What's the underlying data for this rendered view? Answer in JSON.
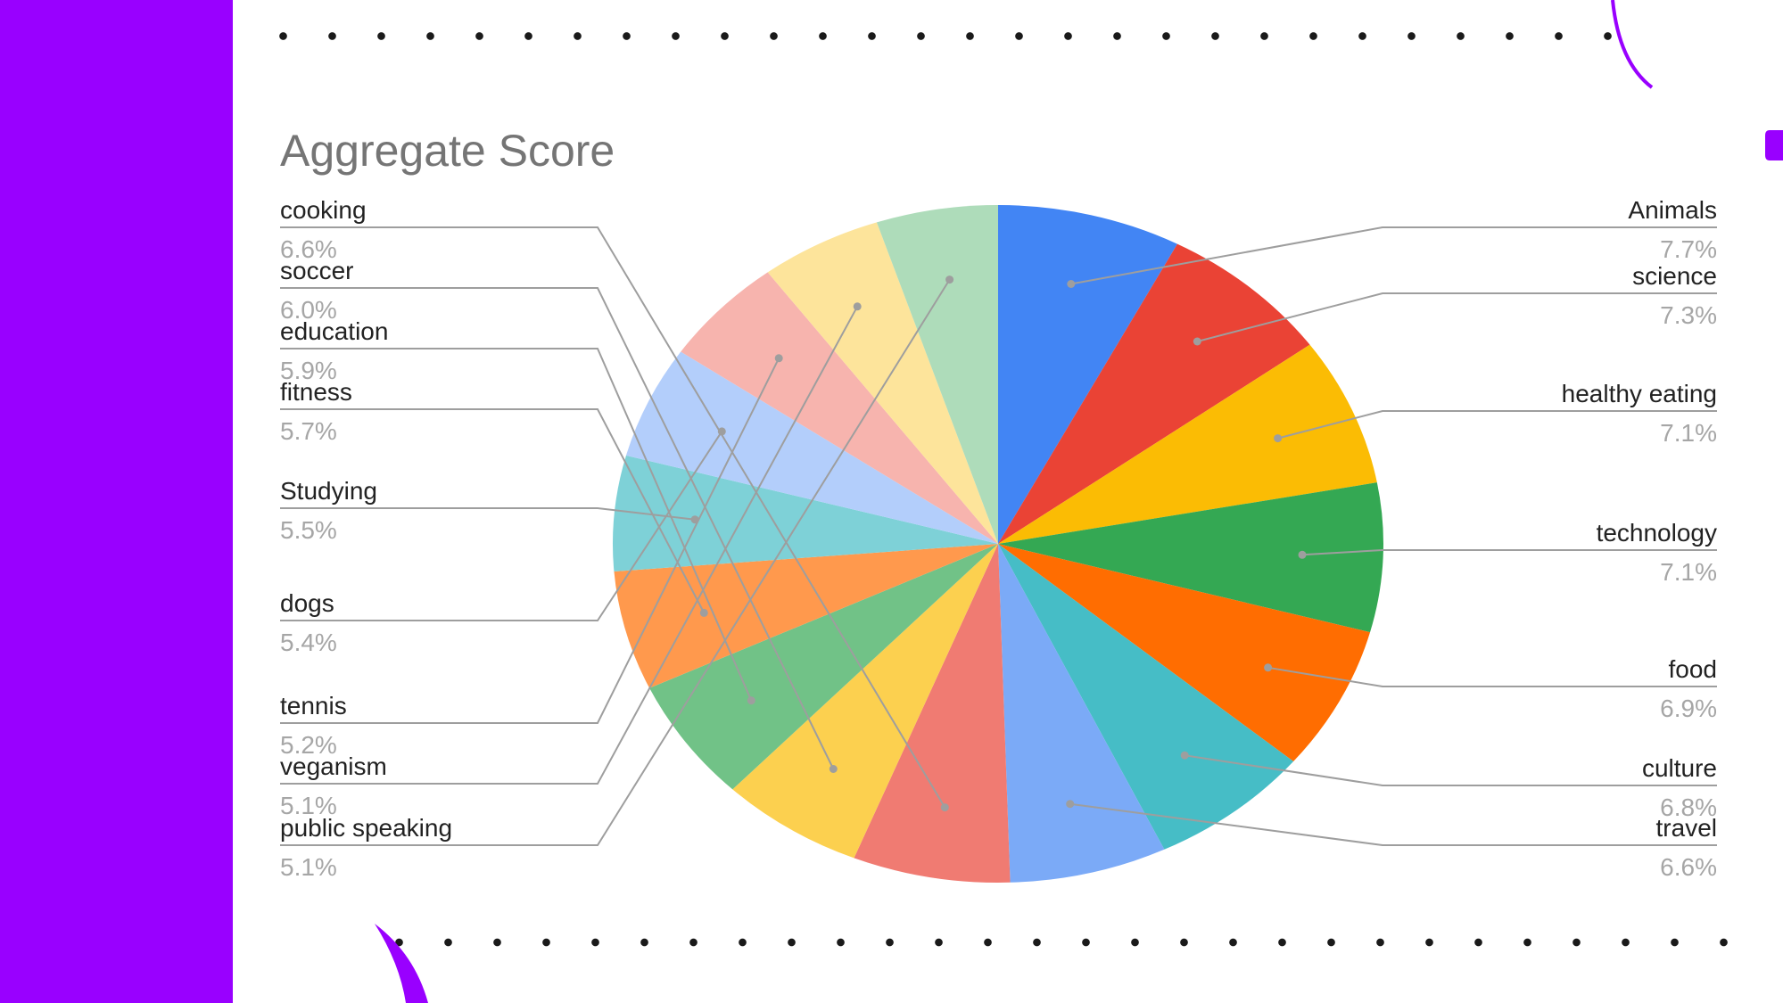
{
  "colors": {
    "sidebar": "#9900ff",
    "accent": "#9900ff",
    "background": "#ffffff",
    "dots": "#1a1a1a"
  },
  "chart_data": {
    "type": "pie",
    "title": "Aggregate Score",
    "legend": "none",
    "label_style": "callout",
    "start_angle_deg": 0,
    "direction": "clockwise",
    "slices": [
      {
        "label": "Animals",
        "pct_label": "7.7%",
        "value": 7.7,
        "color": "#4285f4",
        "side": "right"
      },
      {
        "label": "science",
        "pct_label": "7.3%",
        "value": 7.3,
        "color": "#ea4335",
        "side": "right"
      },
      {
        "label": "healthy eating",
        "pct_label": "7.1%",
        "value": 7.1,
        "color": "#fbbc04",
        "side": "right"
      },
      {
        "label": "technology",
        "pct_label": "7.1%",
        "value": 7.1,
        "color": "#34a853",
        "side": "right"
      },
      {
        "label": "food",
        "pct_label": "6.9%",
        "value": 6.9,
        "color": "#ff6d01",
        "side": "right"
      },
      {
        "label": "culture",
        "pct_label": "6.8%",
        "value": 6.8,
        "color": "#46bdc6",
        "side": "right"
      },
      {
        "label": "travel",
        "pct_label": "6.6%",
        "value": 6.6,
        "color": "#7baaf7",
        "side": "right"
      },
      {
        "label": "cooking",
        "pct_label": "6.6%",
        "value": 6.6,
        "color": "#f07b72",
        "side": "left"
      },
      {
        "label": "soccer",
        "pct_label": "6.0%",
        "value": 6.0,
        "color": "#fcd04f",
        "side": "left"
      },
      {
        "label": "education",
        "pct_label": "5.9%",
        "value": 5.9,
        "color": "#71c287",
        "side": "left"
      },
      {
        "label": "fitness",
        "pct_label": "5.7%",
        "value": 5.7,
        "color": "#ff994d",
        "side": "left"
      },
      {
        "label": "Studying",
        "pct_label": "5.5%",
        "value": 5.5,
        "color": "#7ed1d7",
        "side": "left"
      },
      {
        "label": "dogs",
        "pct_label": "5.4%",
        "value": 5.4,
        "color": "#b3cefb",
        "side": "left"
      },
      {
        "label": "tennis",
        "pct_label": "5.2%",
        "value": 5.2,
        "color": "#f7b4ae",
        "side": "left"
      },
      {
        "label": "veganism",
        "pct_label": "5.1%",
        "value": 5.1,
        "color": "#fde49b",
        "side": "left"
      },
      {
        "label": "public speaking",
        "pct_label": "5.1%",
        "value": 5.1,
        "color": "#aedcba",
        "side": "left"
      }
    ]
  }
}
